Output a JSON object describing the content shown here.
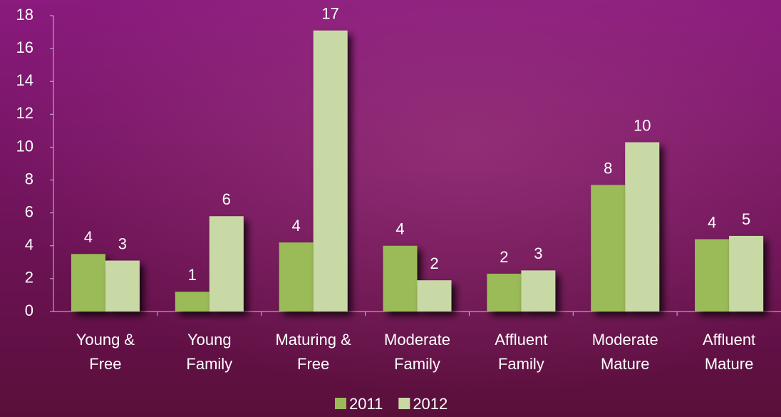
{
  "chart_data": {
    "type": "bar",
    "categories": [
      "Young & Free",
      "Young Family",
      "Maturing & Free",
      "Moderate Family",
      "Affluent Family",
      "Moderate Mature",
      "Affluent Mature"
    ],
    "series": [
      {
        "name": "2011",
        "color": "#9bbb59",
        "values": [
          3.5,
          1.2,
          4.2,
          4.0,
          2.3,
          7.7,
          4.4
        ],
        "value_labels": [
          "4",
          "1",
          "4",
          "4",
          "2",
          "8",
          "4"
        ]
      },
      {
        "name": "2012",
        "color": "#c8d9a6",
        "values": [
          3.1,
          5.8,
          17.1,
          1.9,
          2.5,
          10.3,
          4.6
        ],
        "value_labels": [
          "3",
          "6",
          "17",
          "2",
          "3",
          "10",
          "5"
        ]
      }
    ],
    "ylim": [
      0,
      18
    ],
    "yticks": [
      0,
      2,
      4,
      6,
      8,
      10,
      12,
      14,
      16,
      18
    ],
    "grid": false,
    "legend": "bottom"
  }
}
